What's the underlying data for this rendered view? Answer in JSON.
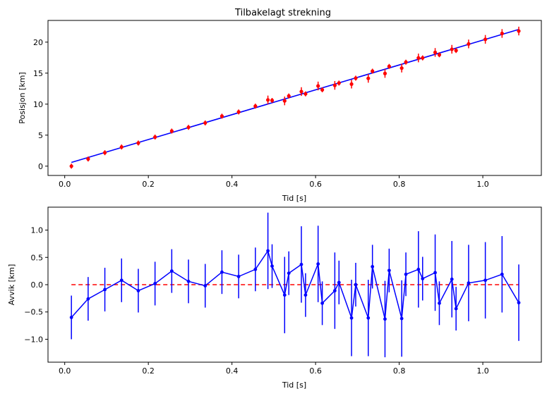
{
  "chart_data": [
    {
      "type": "scatter",
      "title": "Tilbakelagt strekning",
      "xlabel": "Tid [s]",
      "ylabel": "Posisjon [km]",
      "xlim": [
        -0.04,
        1.14
      ],
      "ylim": [
        -1.5,
        23.5
      ],
      "xticks": [
        0.0,
        0.2,
        0.4,
        0.6,
        0.8,
        1.0
      ],
      "xtick_labels": [
        "0.0",
        "0.2",
        "0.4",
        "0.6",
        "0.8",
        "1.0"
      ],
      "yticks": [
        0,
        5,
        10,
        15,
        20
      ],
      "ytick_labels": [
        "0",
        "5",
        "10",
        "15",
        "20"
      ],
      "grid": false,
      "measurements": {
        "color": "#ff0000",
        "x": [
          0.016,
          0.056,
          0.096,
          0.136,
          0.176,
          0.216,
          0.256,
          0.296,
          0.336,
          0.376,
          0.416,
          0.456,
          0.486,
          0.496,
          0.526,
          0.536,
          0.566,
          0.576,
          0.606,
          0.616,
          0.646,
          0.656,
          0.686,
          0.696,
          0.726,
          0.736,
          0.766,
          0.776,
          0.806,
          0.816,
          0.846,
          0.856,
          0.886,
          0.896,
          0.926,
          0.936,
          0.966,
          1.006,
          1.046,
          1.086
        ],
        "y": [
          0.0,
          1.15,
          2.17,
          3.09,
          3.73,
          4.69,
          5.66,
          6.26,
          6.97,
          8.06,
          8.74,
          9.68,
          10.68,
          10.6,
          10.52,
          11.32,
          12.03,
          11.66,
          12.93,
          12.31,
          13.03,
          13.4,
          13.23,
          14.19,
          14.16,
          15.32,
          14.95,
          16.09,
          15.81,
          16.77,
          17.45,
          17.46,
          18.34,
          17.96,
          18.85,
          18.65,
          19.71,
          20.45,
          21.4,
          21.79
        ],
        "yerr": [
          0.4,
          0.4,
          0.4,
          0.4,
          0.4,
          0.4,
          0.4,
          0.4,
          0.4,
          0.4,
          0.4,
          0.4,
          0.7,
          0.4,
          0.7,
          0.4,
          0.7,
          0.4,
          0.7,
          0.4,
          0.7,
          0.4,
          0.7,
          0.4,
          0.7,
          0.4,
          0.7,
          0.4,
          0.7,
          0.4,
          0.7,
          0.4,
          0.7,
          0.4,
          0.7,
          0.4,
          0.7,
          0.7,
          0.7,
          0.7
        ]
      },
      "fit_line": {
        "color": "#0000ff",
        "x": [
          0.016,
          1.086
        ],
        "y": [
          0.6,
          22.05
        ]
      }
    },
    {
      "type": "line",
      "title": "",
      "xlabel": "Tid [s]",
      "ylabel": "Avvik [km]",
      "xlim": [
        -0.04,
        1.14
      ],
      "ylim": [
        -1.42,
        1.42
      ],
      "xticks": [
        0.0,
        0.2,
        0.4,
        0.6,
        0.8,
        1.0
      ],
      "xtick_labels": [
        "0.0",
        "0.2",
        "0.4",
        "0.6",
        "0.8",
        "1.0"
      ],
      "yticks": [
        -1.0,
        -0.5,
        0.0,
        0.5,
        1.0
      ],
      "ytick_labels": [
        "−1.0",
        "−0.5",
        "0.0",
        "0.5",
        "1.0"
      ],
      "grid": false,
      "residuals": {
        "color": "#0000ff",
        "x": [
          0.016,
          0.056,
          0.096,
          0.136,
          0.176,
          0.216,
          0.256,
          0.296,
          0.336,
          0.376,
          0.416,
          0.456,
          0.486,
          0.496,
          0.526,
          0.536,
          0.566,
          0.576,
          0.606,
          0.616,
          0.646,
          0.656,
          0.686,
          0.696,
          0.726,
          0.736,
          0.766,
          0.776,
          0.806,
          0.816,
          0.846,
          0.856,
          0.886,
          0.896,
          0.926,
          0.936,
          0.966,
          1.006,
          1.046,
          1.086
        ],
        "y": [
          -0.6,
          -0.26,
          -0.09,
          0.08,
          -0.11,
          0.02,
          0.25,
          0.06,
          -0.02,
          0.23,
          0.15,
          0.28,
          0.62,
          0.34,
          -0.19,
          0.21,
          0.37,
          -0.19,
          0.38,
          -0.34,
          -0.11,
          0.04,
          -0.61,
          0.0,
          -0.61,
          0.33,
          -0.63,
          0.26,
          -0.62,
          0.19,
          0.28,
          0.11,
          0.22,
          -0.34,
          0.1,
          -0.44,
          0.03,
          0.08,
          0.19,
          -0.33
        ],
        "yerr": [
          0.4,
          0.4,
          0.4,
          0.4,
          0.4,
          0.4,
          0.4,
          0.4,
          0.4,
          0.4,
          0.4,
          0.4,
          0.7,
          0.4,
          0.7,
          0.4,
          0.7,
          0.4,
          0.7,
          0.4,
          0.7,
          0.4,
          0.7,
          0.4,
          0.7,
          0.4,
          0.7,
          0.4,
          0.7,
          0.4,
          0.7,
          0.4,
          0.7,
          0.4,
          0.7,
          0.4,
          0.7,
          0.7,
          0.7,
          0.7
        ]
      },
      "zero_line": {
        "color": "#ff0000",
        "style": "dashed",
        "y": 0.0,
        "x": [
          0.016,
          1.086
        ]
      }
    }
  ]
}
